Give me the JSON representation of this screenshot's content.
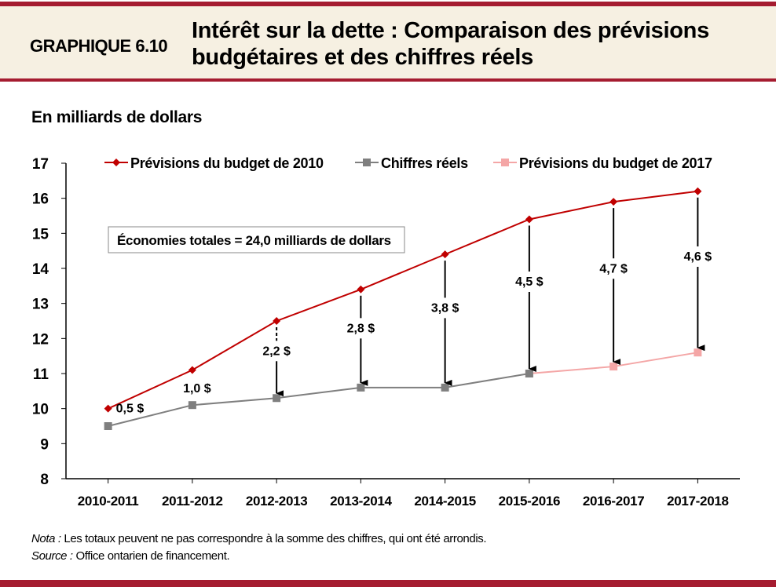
{
  "header": {
    "id": "GRAPHIQUE 6.10",
    "title": "Intérêt sur la dette : Comparaison des prévisions budgétaires et des chiffres réels"
  },
  "unit_label": "En milliards de dollars",
  "notes": {
    "nota_label": "Nota :",
    "nota_text": " Les totaux peuvent ne pas correspondre à la somme des chiffres, qui ont été arrondis.",
    "source_label": "Source :",
    "source_text": " Office ontarien de financement."
  },
  "colors": {
    "brand": "#A51C30",
    "header_bg": "#F6F0E2",
    "budget2010": "#C00000",
    "actual": "#7F7F7F",
    "budget2017": "#F4A6A6"
  },
  "chart_data": {
    "type": "line",
    "categories": [
      "2010-2011",
      "2011-2012",
      "2012-2013",
      "2013-2014",
      "2014-2015",
      "2015-2016",
      "2016-2017",
      "2017-2018"
    ],
    "ylim": [
      8,
      17
    ],
    "yticks": [
      8,
      9,
      10,
      11,
      12,
      13,
      14,
      15,
      16,
      17
    ],
    "legend_placement": "top",
    "series": [
      {
        "name": "Prévisions du budget de 2010",
        "values": [
          10.0,
          11.1,
          12.5,
          13.4,
          14.4,
          15.4,
          15.9,
          16.2
        ],
        "marker": "diamond",
        "color": "#C00000"
      },
      {
        "name": "Chiffres réels",
        "values": [
          9.5,
          10.1,
          10.3,
          10.6,
          10.6,
          11.0,
          null,
          null
        ],
        "marker": "square",
        "color": "#7F7F7F"
      },
      {
        "name": "Prévisions du budget de 2017",
        "values": [
          null,
          null,
          null,
          null,
          null,
          11.0,
          11.2,
          11.6
        ],
        "marker": "square",
        "color": "#F4A6A6"
      }
    ],
    "gap_labels": [
      "0,5 $",
      "1,0 $",
      "2,2 $",
      "2,8 $",
      "3,8 $",
      "4,5 $",
      "4,7 $",
      "4,6 $"
    ],
    "annotation": "Économies totales = 24,0 milliards  de dollars"
  }
}
